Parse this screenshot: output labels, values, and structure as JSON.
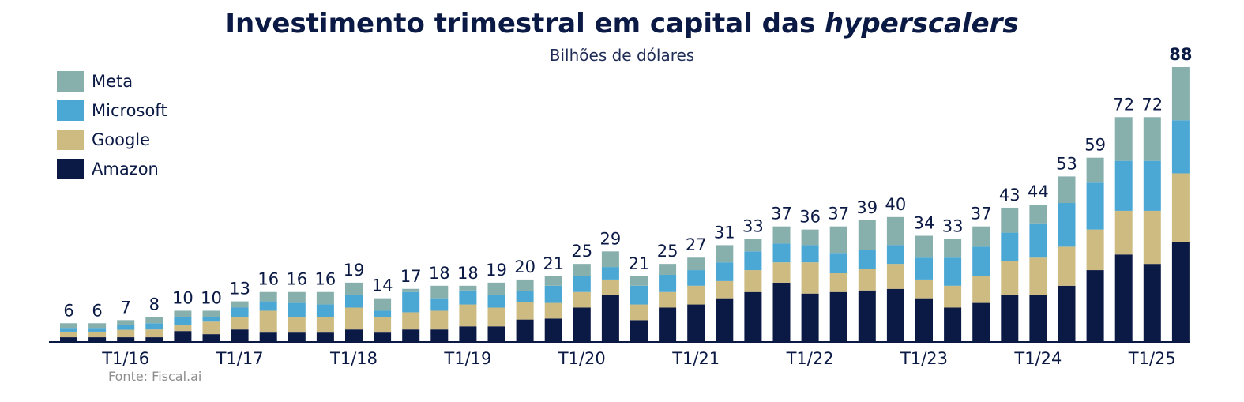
{
  "title": {
    "main": "Investimento trimestral em capital das ",
    "italic": "hyperscalers"
  },
  "subtitle": "Bilhões de dólares",
  "source": "Fonte: Fiscal.ai",
  "colors": {
    "Meta": "#87b0ad",
    "Microsoft": "#4ba7d4",
    "Google": "#cdbb82",
    "Amazon": "#0b1a45"
  },
  "chart_data": {
    "type": "bar",
    "stacked": true,
    "title": "Investimento trimestral em capital das hyperscalers",
    "subtitle": "Bilhões de dólares",
    "legend": [
      "Meta",
      "Microsoft",
      "Google",
      "Amazon"
    ],
    "legend_position": "top-left",
    "grid": false,
    "ylim": [
      0,
      88
    ],
    "x_tick_labels": [
      {
        "index": 2,
        "label": "T1/16"
      },
      {
        "index": 6,
        "label": "T1/17"
      },
      {
        "index": 10,
        "label": "T1/18"
      },
      {
        "index": 14,
        "label": "T1/19"
      },
      {
        "index": 18,
        "label": "T1/20"
      },
      {
        "index": 22,
        "label": "T1/21"
      },
      {
        "index": 26,
        "label": "T1/22"
      },
      {
        "index": 30,
        "label": "T1/23"
      },
      {
        "index": 34,
        "label": "T1/24"
      },
      {
        "index": 38,
        "label": "T1/25"
      }
    ],
    "totals": [
      6,
      6,
      7,
      8,
      10,
      10,
      13,
      16,
      16,
      16,
      19,
      14,
      17,
      18,
      18,
      19,
      20,
      21,
      25,
      29,
      21,
      25,
      27,
      31,
      33,
      37,
      36,
      37,
      39,
      40,
      34,
      33,
      37,
      43,
      44,
      53,
      59,
      72,
      72,
      88
    ],
    "series": [
      {
        "name": "Amazon",
        "values": [
          1.5,
          1.5,
          1.5,
          1.5,
          3.5,
          2.5,
          4,
          3,
          3,
          3,
          4,
          3,
          4,
          4,
          5,
          5,
          7,
          7.5,
          11,
          15,
          7,
          11,
          12,
          14,
          16,
          19,
          15.5,
          16,
          16.5,
          17,
          14,
          11,
          12.5,
          15,
          15,
          18,
          23,
          28,
          25,
          32
        ]
      },
      {
        "name": "Google",
        "values": [
          1.8,
          1.8,
          2.4,
          2.5,
          2,
          4,
          4,
          7,
          5,
          5,
          7,
          5,
          5.5,
          6,
          7,
          6,
          5.5,
          5,
          5,
          5,
          5,
          5,
          6,
          5.5,
          7,
          6.5,
          10,
          6,
          7,
          8,
          6,
          7,
          8.5,
          11,
          12,
          12.5,
          13,
          14,
          17,
          22
        ]
      },
      {
        "name": "Microsoft",
        "values": [
          1.2,
          1.2,
          1.6,
          2,
          2.5,
          1.5,
          3,
          3,
          4.5,
          4,
          4,
          2,
          6.5,
          4,
          4.5,
          4,
          3.5,
          5.5,
          5,
          4,
          6,
          5.5,
          5,
          6,
          6,
          6,
          5.5,
          6.5,
          6,
          6,
          7,
          9,
          9.5,
          9,
          11,
          14,
          15,
          16,
          16,
          17
        ]
      },
      {
        "name": "Meta",
        "values": [
          1.5,
          1.5,
          1.5,
          2,
          2,
          2,
          2,
          3,
          3.5,
          4,
          4,
          4,
          1,
          4,
          1.5,
          4,
          3.5,
          3,
          4,
          5,
          3,
          3.5,
          4,
          5.5,
          4,
          5.5,
          5,
          8.5,
          9.5,
          9,
          7,
          6,
          6.5,
          8,
          6,
          8.5,
          8,
          14,
          14,
          17
        ]
      }
    ]
  }
}
